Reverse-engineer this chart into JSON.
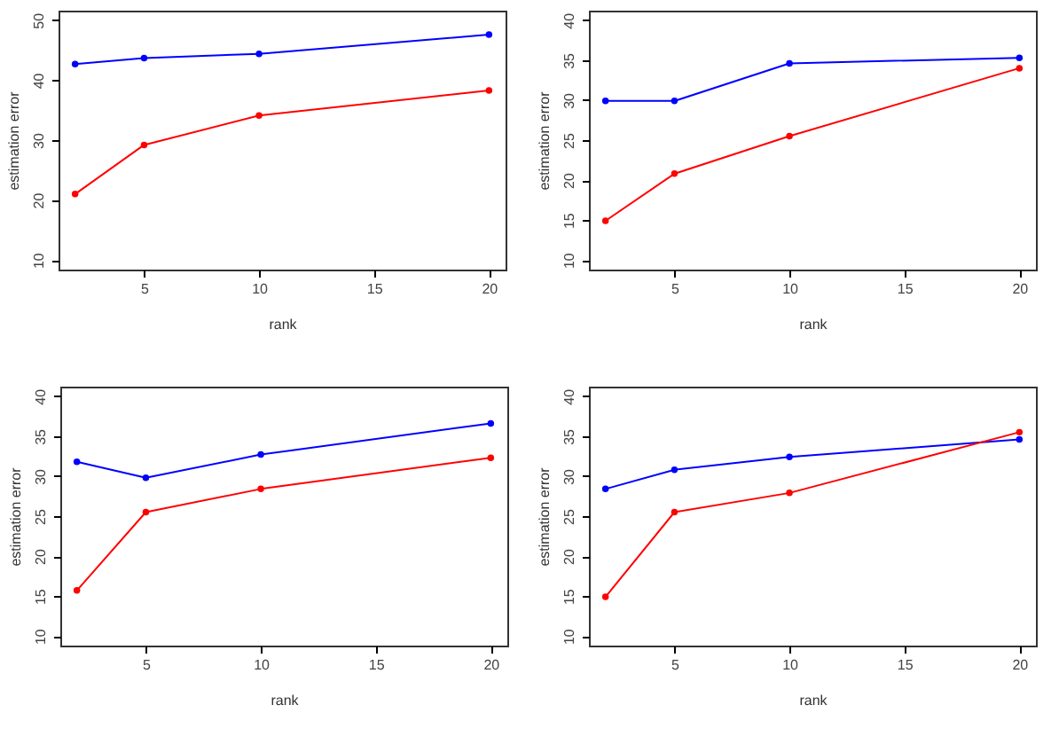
{
  "chart_data": [
    {
      "type": "line",
      "xlabel": "rank",
      "ylabel": "estimation error",
      "x": [
        2,
        5,
        10,
        20
      ],
      "xlim": [
        1.28,
        20.72
      ],
      "xticks": [
        5,
        10,
        15,
        20
      ],
      "ylim": [
        8.4,
        51.6
      ],
      "yticks": [
        10,
        20,
        30,
        40,
        50
      ],
      "marker": "circle",
      "series": [
        {
          "color": "#0000ff",
          "values": [
            42.7,
            43.7,
            44.4,
            47.6
          ]
        },
        {
          "color": "#ff0000",
          "values": [
            21.0,
            29.2,
            34.1,
            38.3
          ]
        }
      ]
    },
    {
      "type": "line",
      "xlabel": "rank",
      "ylabel": "estimation error",
      "x": [
        2,
        5,
        10,
        20
      ],
      "xlim": [
        1.28,
        20.72
      ],
      "xticks": [
        5,
        10,
        15,
        20
      ],
      "ylim": [
        8.8,
        41.2
      ],
      "yticks": [
        10,
        15,
        20,
        25,
        30,
        35,
        40
      ],
      "marker": "circle",
      "series": [
        {
          "color": "#0000ff",
          "values": [
            29.9,
            29.9,
            34.6,
            35.3
          ]
        },
        {
          "color": "#ff0000",
          "values": [
            14.9,
            20.8,
            25.5,
            34.0
          ]
        }
      ]
    },
    {
      "type": "line",
      "xlabel": "rank",
      "ylabel": "estimation error",
      "x": [
        2,
        5,
        10,
        20
      ],
      "xlim": [
        1.28,
        20.72
      ],
      "xticks": [
        5,
        10,
        15,
        20
      ],
      "ylim": [
        8.8,
        41.2
      ],
      "yticks": [
        10,
        15,
        20,
        25,
        30,
        35,
        40
      ],
      "marker": "circle",
      "series": [
        {
          "color": "#0000ff",
          "values": [
            31.8,
            29.8,
            32.7,
            36.6
          ]
        },
        {
          "color": "#ff0000",
          "values": [
            15.7,
            25.5,
            28.4,
            32.3
          ]
        }
      ]
    },
    {
      "type": "line",
      "xlabel": "rank",
      "ylabel": "estimation error",
      "x": [
        2,
        5,
        10,
        20
      ],
      "xlim": [
        1.28,
        20.72
      ],
      "xticks": [
        5,
        10,
        15,
        20
      ],
      "ylim": [
        8.8,
        41.2
      ],
      "yticks": [
        10,
        15,
        20,
        25,
        30,
        35,
        40
      ],
      "marker": "circle",
      "series": [
        {
          "color": "#0000ff",
          "values": [
            28.4,
            30.8,
            32.4,
            34.6
          ]
        },
        {
          "color": "#ff0000",
          "values": [
            14.9,
            25.5,
            27.9,
            35.5
          ]
        }
      ]
    }
  ]
}
